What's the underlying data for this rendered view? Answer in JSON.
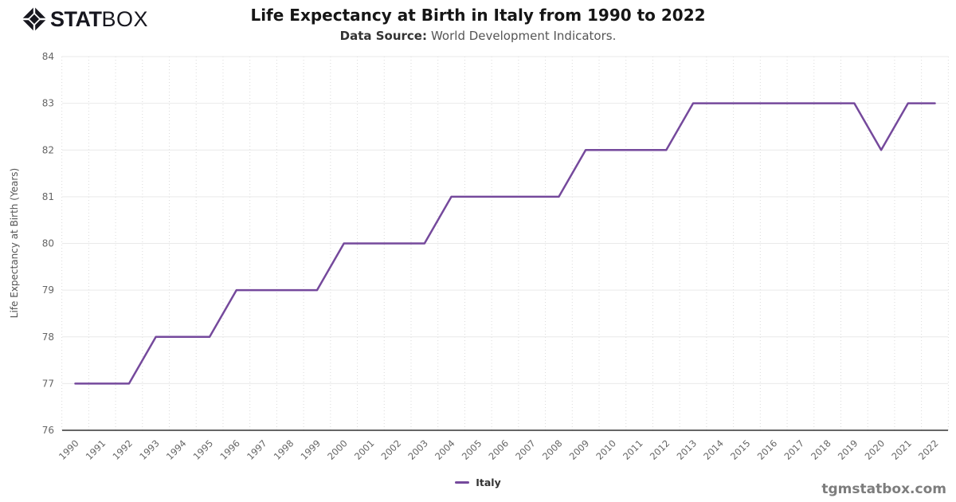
{
  "brand": {
    "stat": "STAT",
    "box": "BOX",
    "icon": "statbox-diamond-icon"
  },
  "subtitle": {
    "label": "Data Source:",
    "text": "World Development Indicators."
  },
  "watermark": "tgmstatbox.com",
  "legend": {
    "items": [
      {
        "label": "Italy",
        "color": "#75499C"
      }
    ]
  },
  "colors": {
    "line": "#75499C",
    "grid_horizontal": "#e9e9e9",
    "grid_vertical": "#dadada",
    "axis": "#333333",
    "tick_label": "#666666",
    "y_axis_title": "#555555"
  },
  "chart_data": {
    "type": "line",
    "title": "Life Expectancy at Birth in Italy from 1990 to 2022",
    "subtitle": "Data Source: World Development Indicators.",
    "xlabel": "",
    "ylabel": "Life Expectancy at Birth (Years)",
    "ylim": [
      76,
      84
    ],
    "yticks": [
      76,
      77,
      78,
      79,
      80,
      81,
      82,
      83,
      84
    ],
    "x": [
      1990,
      1991,
      1992,
      1993,
      1994,
      1995,
      1996,
      1997,
      1998,
      1999,
      2000,
      2001,
      2002,
      2003,
      2004,
      2005,
      2006,
      2007,
      2008,
      2009,
      2010,
      2011,
      2012,
      2013,
      2014,
      2015,
      2016,
      2017,
      2018,
      2019,
      2020,
      2021,
      2022
    ],
    "series": [
      {
        "name": "Italy",
        "color": "#75499C",
        "values": [
          77,
          77,
          77,
          78,
          78,
          78,
          79,
          79,
          79,
          79,
          80,
          80,
          80,
          80,
          81,
          81,
          81,
          81,
          81,
          82,
          82,
          82,
          82,
          83,
          83,
          83,
          83,
          83,
          83,
          83,
          82,
          83,
          83
        ]
      }
    ],
    "grid": {
      "horizontal": "solid",
      "vertical": "dotted"
    },
    "legend_position": "bottom"
  }
}
